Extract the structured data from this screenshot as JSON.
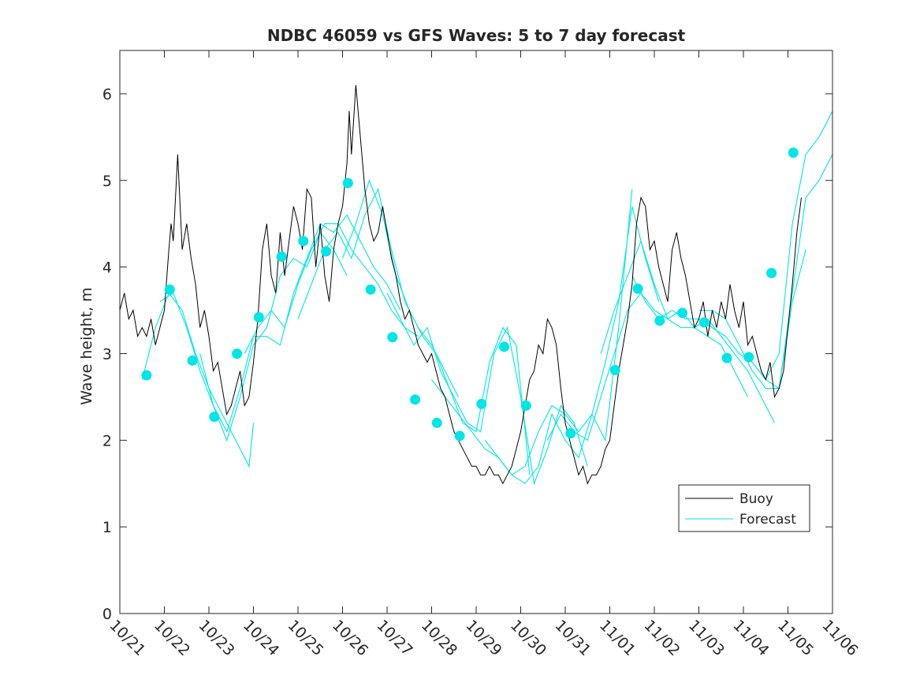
{
  "chart_data": {
    "type": "line",
    "title": "NDBC 46059 vs GFS Waves: 5 to 7 day forecast",
    "xlabel": "",
    "ylabel": "Wave height, m",
    "x_unit": "days since 10/21 00:00",
    "xlim": [
      0,
      16
    ],
    "ylim": [
      0,
      6.5
    ],
    "yticks": [
      0,
      1,
      2,
      3,
      4,
      5,
      6
    ],
    "ytick_labels": [
      "0",
      "1",
      "2",
      "3",
      "4",
      "5",
      "6"
    ],
    "xticks": [
      0,
      1,
      2,
      3,
      4,
      5,
      6,
      7,
      8,
      9,
      10,
      11,
      12,
      13,
      14,
      15,
      16
    ],
    "xtick_labels": [
      "10/21",
      "10/22",
      "10/23",
      "10/24",
      "10/25",
      "10/26",
      "10/27",
      "10/28",
      "10/29",
      "10/30",
      "10/31",
      "11/01",
      "11/02",
      "11/03",
      "11/04",
      "11/05",
      "11/06"
    ],
    "grid": false,
    "legend": {
      "location": "bottom-right",
      "entries": [
        "Buoy",
        "Forecast"
      ]
    },
    "colors": {
      "buoy": "#000000",
      "forecast": "#00e5e5",
      "axes": "#262626"
    },
    "series": [
      {
        "name": "Buoy",
        "color": "#000000",
        "x": [
          0.0,
          0.1,
          0.2,
          0.3,
          0.4,
          0.5,
          0.6,
          0.7,
          0.8,
          0.9,
          1.0,
          1.1,
          1.15,
          1.2,
          1.3,
          1.4,
          1.5,
          1.6,
          1.7,
          1.8,
          1.9,
          2.0,
          2.1,
          2.2,
          2.3,
          2.4,
          2.5,
          2.6,
          2.7,
          2.8,
          2.9,
          3.0,
          3.1,
          3.2,
          3.3,
          3.4,
          3.5,
          3.6,
          3.7,
          3.8,
          3.9,
          4.0,
          4.1,
          4.2,
          4.3,
          4.4,
          4.5,
          4.6,
          4.7,
          4.8,
          4.9,
          5.0,
          5.1,
          5.15,
          5.2,
          5.3,
          5.4,
          5.5,
          5.6,
          5.7,
          5.8,
          5.9,
          6.0,
          6.1,
          6.2,
          6.3,
          6.4,
          6.5,
          6.6,
          6.7,
          6.8,
          6.9,
          7.0,
          7.1,
          7.2,
          7.3,
          7.4,
          7.5,
          7.6,
          7.7,
          7.8,
          7.9,
          8.0,
          8.1,
          8.2,
          8.3,
          8.4,
          8.5,
          8.6,
          8.7,
          8.8,
          8.9,
          9.0,
          9.1,
          9.2,
          9.3,
          9.4,
          9.5,
          9.6,
          9.7,
          9.8,
          9.9,
          10.0,
          10.1,
          10.2,
          10.3,
          10.4,
          10.5,
          10.6,
          10.7,
          10.8,
          10.9,
          11.0,
          11.1,
          11.2,
          11.3,
          11.4,
          11.5,
          11.6,
          11.7,
          11.8,
          11.9,
          12.0,
          12.1,
          12.2,
          12.3,
          12.4,
          12.5,
          12.6,
          12.7,
          12.8,
          12.9,
          13.0,
          13.1,
          13.2,
          13.3,
          13.4,
          13.5,
          13.6,
          13.7,
          13.8,
          13.9,
          14.0,
          14.1,
          14.2,
          14.3,
          14.4,
          14.5,
          14.6,
          14.7,
          14.8,
          14.9,
          15.0,
          15.1,
          15.2,
          15.3
        ],
        "y": [
          3.5,
          3.7,
          3.4,
          3.5,
          3.2,
          3.3,
          3.2,
          3.4,
          3.1,
          3.3,
          3.5,
          4.2,
          4.5,
          4.3,
          5.3,
          4.2,
          4.5,
          4.1,
          3.8,
          3.3,
          3.5,
          3.2,
          2.8,
          2.9,
          2.6,
          2.3,
          2.4,
          2.6,
          2.8,
          2.4,
          2.5,
          2.9,
          3.4,
          4.2,
          4.5,
          3.9,
          3.7,
          4.4,
          3.9,
          4.3,
          4.7,
          4.5,
          4.2,
          4.9,
          4.8,
          4.0,
          4.5,
          3.9,
          3.6,
          4.2,
          4.5,
          4.7,
          5.2,
          5.8,
          5.3,
          6.1,
          5.5,
          4.9,
          4.5,
          4.3,
          4.4,
          4.7,
          4.4,
          4.1,
          3.9,
          3.6,
          3.4,
          3.5,
          3.3,
          3.1,
          3.0,
          2.9,
          3.0,
          2.8,
          2.6,
          2.5,
          2.3,
          2.1,
          2.0,
          1.9,
          1.8,
          1.7,
          1.7,
          1.6,
          1.6,
          1.7,
          1.6,
          1.6,
          1.5,
          1.6,
          1.7,
          1.9,
          2.1,
          2.4,
          2.7,
          2.8,
          3.1,
          3.0,
          3.4,
          3.3,
          3.1,
          2.6,
          2.2,
          2.0,
          1.8,
          1.6,
          1.7,
          1.5,
          1.6,
          1.6,
          1.7,
          1.9,
          2.0,
          2.4,
          2.8,
          3.1,
          3.4,
          3.8,
          4.5,
          4.8,
          4.7,
          4.2,
          4.3,
          4.0,
          3.8,
          3.6,
          4.2,
          4.4,
          4.1,
          3.9,
          3.6,
          3.3,
          3.4,
          3.6,
          3.2,
          3.5,
          3.3,
          3.6,
          3.4,
          3.8,
          3.5,
          3.3,
          3.6,
          3.1,
          3.2,
          3.0,
          2.8,
          2.7,
          2.9,
          2.5,
          2.6,
          2.8,
          3.3,
          3.8,
          4.4,
          4.8
        ]
      },
      {
        "name": "Forecast",
        "color": "#00e5e5",
        "runs": [
          {
            "x": [
              0.5,
              0.8,
              1.1,
              1.4,
              1.7,
              2.0,
              2.3,
              2.6,
              2.9,
              3.0
            ],
            "y": [
              2.7,
              3.3,
              3.7,
              3.5,
              3.0,
              2.6,
              2.3,
              2.0,
              1.7,
              2.2
            ]
          },
          {
            "x": [
              0.9,
              1.2,
              1.5,
              1.8,
              2.1,
              2.4,
              2.7,
              3.0,
              3.3,
              3.6,
              3.9,
              4.2,
              4.5,
              4.8,
              5.1
            ],
            "y": [
              3.6,
              3.7,
              3.3,
              2.8,
              2.4,
              2.0,
              2.5,
              3.1,
              3.3,
              3.9,
              4.1,
              4.0,
              4.4,
              4.2,
              3.9
            ]
          },
          {
            "x": [
              1.8,
              2.1,
              2.4,
              2.7,
              3.0,
              3.3,
              3.6,
              3.9,
              4.2,
              4.5,
              4.8,
              5.1,
              5.4,
              5.7,
              6.0,
              6.3
            ],
            "y": [
              3.0,
              2.4,
              2.1,
              2.6,
              3.2,
              3.2,
              3.1,
              3.7,
              4.1,
              4.5,
              4.4,
              4.6,
              4.3,
              4.0,
              3.8,
              3.5
            ]
          },
          {
            "x": [
              2.8,
              3.1,
              3.4,
              3.7,
              4.0,
              4.3,
              4.6,
              4.9,
              5.2,
              5.5,
              5.8,
              6.1,
              6.4,
              6.7
            ],
            "y": [
              3.0,
              3.3,
              3.5,
              3.3,
              3.8,
              4.2,
              4.5,
              4.5,
              4.2,
              4.0,
              3.8,
              3.5,
              3.3,
              3.2
            ]
          },
          {
            "x": [
              4.0,
              4.3,
              4.6,
              4.9,
              5.2,
              5.5,
              5.8,
              6.1,
              6.4,
              6.7,
              7.0,
              7.3,
              7.6
            ],
            "y": [
              3.4,
              3.8,
              4.2,
              4.4,
              4.1,
              4.6,
              4.9,
              4.2,
              3.6,
              3.3,
              3.1,
              2.8,
              2.5
            ]
          },
          {
            "x": [
              5.0,
              5.3,
              5.6,
              5.9,
              6.2,
              6.5,
              6.8,
              7.1,
              7.4,
              7.7,
              8.0,
              8.3,
              8.6,
              8.9,
              9.2
            ],
            "y": [
              4.1,
              4.5,
              5.0,
              4.6,
              3.9,
              3.5,
              3.2,
              3.0,
              2.6,
              2.2,
              2.1,
              2.9,
              3.3,
              3.1,
              1.6
            ]
          },
          {
            "x": [
              6.0,
              6.3,
              6.6,
              6.9,
              7.2,
              7.5,
              7.8,
              8.1,
              8.4,
              8.7,
              9.0,
              9.3,
              9.6,
              9.9,
              10.2,
              10.5
            ],
            "y": [
              3.7,
              3.4,
              3.1,
              3.3,
              2.8,
              2.5,
              2.2,
              2.1,
              3.0,
              3.3,
              2.5,
              1.5,
              1.9,
              2.4,
              2.2,
              1.7
            ]
          },
          {
            "x": [
              7.0,
              7.3,
              7.6,
              7.9,
              8.2,
              8.5,
              8.8,
              9.1,
              9.4,
              9.7,
              10.0,
              10.3,
              10.6,
              10.9,
              11.2,
              11.5
            ],
            "y": [
              2.7,
              2.5,
              2.3,
              2.1,
              1.9,
              1.8,
              1.6,
              1.7,
              2.1,
              2.4,
              2.3,
              2.1,
              2.3,
              2.0,
              3.3,
              4.9
            ]
          },
          {
            "x": [
              8.2,
              8.5,
              8.8,
              9.1,
              9.4,
              9.7,
              10.0,
              10.3,
              10.6,
              10.9,
              11.2,
              11.5,
              11.8,
              12.1
            ],
            "y": [
              2.0,
              1.8,
              1.6,
              1.5,
              1.7,
              2.3,
              2.0,
              1.8,
              2.3,
              2.9,
              3.6,
              4.7,
              4.1,
              3.6
            ]
          },
          {
            "x": [
              9.6,
              9.9,
              10.2,
              10.5,
              10.8,
              11.1,
              11.4,
              11.7,
              12.0,
              12.3,
              12.6,
              12.9,
              13.2,
              13.5,
              13.8,
              14.1
            ],
            "y": [
              2.0,
              2.3,
              2.1,
              2.0,
              2.5,
              3.0,
              3.5,
              3.7,
              3.5,
              3.4,
              3.3,
              3.3,
              3.2,
              3.1,
              2.8,
              2.5
            ]
          },
          {
            "x": [
              10.8,
              11.1,
              11.4,
              11.7,
              12.0,
              12.3,
              12.6,
              12.9,
              13.2,
              13.5,
              13.8,
              14.1,
              14.4,
              14.7
            ],
            "y": [
              3.0,
              3.5,
              3.9,
              4.3,
              3.8,
              3.4,
              3.5,
              3.3,
              3.4,
              3.2,
              3.0,
              2.8,
              2.5,
              2.2
            ]
          },
          {
            "x": [
              11.5,
              11.8,
              12.1,
              12.4,
              12.7,
              13.0,
              13.3,
              13.6,
              13.9,
              14.2,
              14.5,
              14.8,
              15.1,
              15.4,
              15.7,
              16.0
            ],
            "y": [
              3.9,
              3.6,
              3.4,
              3.5,
              3.4,
              3.4,
              3.3,
              3.2,
              3.0,
              2.9,
              2.7,
              3.0,
              4.5,
              5.3,
              5.5,
              5.8
            ]
          },
          {
            "x": [
              13.0,
              13.3,
              13.6,
              13.9,
              14.2,
              14.5,
              14.8,
              15.1,
              15.4,
              15.7,
              16.0
            ],
            "y": [
              3.5,
              3.5,
              3.4,
              3.1,
              2.8,
              2.6,
              2.6,
              3.7,
              4.8,
              5.0,
              5.3
            ]
          },
          {
            "x": [
              14.2,
              14.5,
              14.8,
              15.1,
              15.4
            ],
            "y": [
              2.9,
              2.7,
              2.6,
              3.6,
              4.2
            ]
          }
        ]
      },
      {
        "name": "Forecast markers",
        "color": "#00e5e5",
        "x": [
          0.6,
          1.12,
          1.63,
          2.12,
          2.63,
          3.12,
          3.63,
          4.12,
          4.63,
          5.12,
          5.63,
          6.12,
          6.63,
          7.12,
          7.63,
          8.12,
          8.63,
          9.12,
          10.12,
          11.12,
          11.63,
          12.12,
          12.63,
          13.12,
          13.63,
          14.12,
          14.63,
          15.12
        ],
        "y": [
          2.75,
          3.74,
          2.92,
          2.27,
          3.0,
          3.42,
          4.12,
          4.3,
          4.18,
          4.97,
          3.74,
          3.19,
          2.47,
          2.2,
          2.05,
          2.42,
          3.08,
          2.4,
          2.08,
          2.81,
          3.75,
          3.38,
          3.47,
          3.36,
          2.95,
          2.96,
          3.93,
          5.32
        ]
      }
    ]
  }
}
